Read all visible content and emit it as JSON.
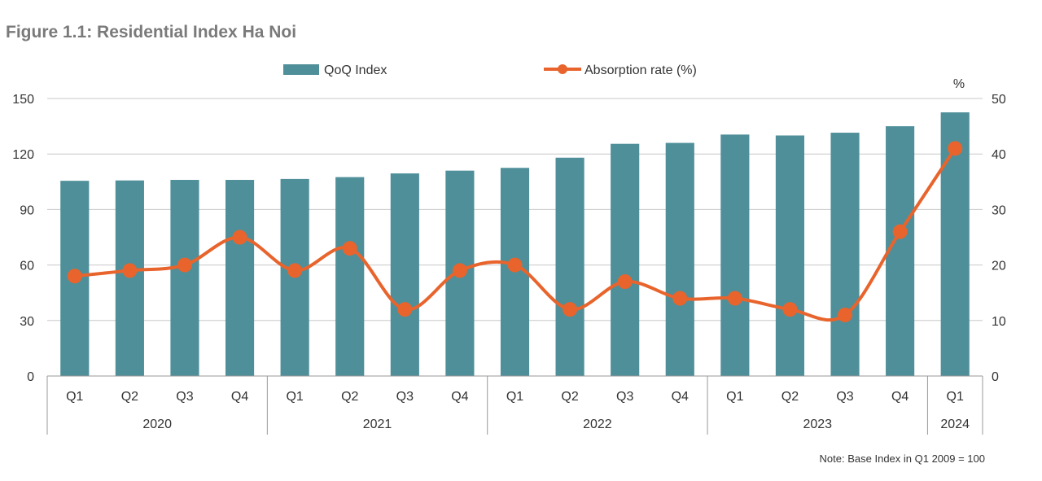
{
  "figure_title": "Figure 1.1: Residential Index Ha Noi",
  "note": "Note: Base Index in Q1 2009 = 100",
  "colors": {
    "bar": "#4f8f99",
    "line": "#e8642c",
    "axis_text": "#333333",
    "title_text": "#7a7a7a",
    "grid": "#c8c8c8"
  },
  "chart_data": {
    "type": "bar",
    "categories": [
      "Q1",
      "Q2",
      "Q3",
      "Q4",
      "Q1",
      "Q2",
      "Q3",
      "Q4",
      "Q1",
      "Q2",
      "Q3",
      "Q4",
      "Q1",
      "Q2",
      "Q3",
      "Q4",
      "Q1"
    ],
    "groups": [
      {
        "label": "2020",
        "count": 4
      },
      {
        "label": "2021",
        "count": 4
      },
      {
        "label": "2022",
        "count": 4
      },
      {
        "label": "2023",
        "count": 4
      },
      {
        "label": "2024",
        "count": 1
      }
    ],
    "series": [
      {
        "name": "QoQ Index",
        "type": "bar",
        "axis": "left",
        "values": [
          105.5,
          105.7,
          106,
          106,
          106.5,
          107.5,
          109.5,
          111,
          112.5,
          118,
          125.5,
          126,
          130.5,
          130,
          131.5,
          135,
          142.5
        ]
      },
      {
        "name": "Absorption rate (%)",
        "type": "line",
        "axis": "right",
        "values": [
          18,
          19,
          20,
          25,
          19,
          23,
          12,
          19,
          20,
          12,
          17,
          14,
          14,
          12,
          11,
          26,
          41
        ]
      }
    ],
    "left_axis": {
      "ylim": [
        0,
        150
      ],
      "ticks": [
        "0",
        "30",
        "60",
        "90",
        "120",
        "150"
      ]
    },
    "right_axis": {
      "ylim": [
        0,
        50
      ],
      "ticks": [
        "0",
        "10",
        "20",
        "30",
        "40",
        "50"
      ],
      "unit_label": "%"
    },
    "grid": true,
    "legend_position": "top-center"
  }
}
